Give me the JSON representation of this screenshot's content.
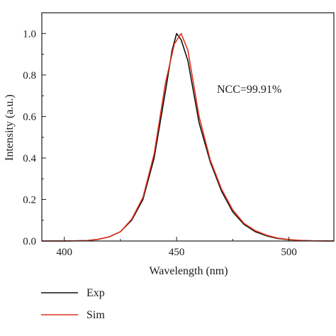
{
  "chart_data": {
    "type": "line",
    "xlabel": "Wavelength (nm)",
    "ylabel": "Intensity (a.u.)",
    "xlim": [
      390,
      520
    ],
    "ylim": [
      0,
      1.1
    ],
    "x_ticks": [
      400,
      450,
      500
    ],
    "y_ticks": [
      0.0,
      0.2,
      0.4,
      0.6,
      0.8,
      1.0
    ],
    "x_tick_labels": [
      "400",
      "450",
      "500"
    ],
    "y_tick_labels": [
      "0.0",
      "0.2",
      "0.4",
      "0.6",
      "0.8",
      "1.0"
    ],
    "annotation": "NCC=99.91%",
    "legend_position": "bottom-left",
    "series": [
      {
        "name": "Exp",
        "color": "#111111",
        "x": [
          390,
          400,
          410,
          415,
          420,
          425,
          430,
          435,
          440,
          445,
          448,
          450,
          452,
          455,
          460,
          465,
          470,
          475,
          480,
          485,
          490,
          495,
          500,
          505,
          510,
          520
        ],
        "y": [
          0.0,
          0.0,
          0.002,
          0.008,
          0.02,
          0.045,
          0.1,
          0.2,
          0.4,
          0.72,
          0.92,
          1.0,
          0.97,
          0.87,
          0.57,
          0.38,
          0.24,
          0.14,
          0.08,
          0.045,
          0.025,
          0.012,
          0.006,
          0.003,
          0.001,
          0.0
        ]
      },
      {
        "name": "Sim",
        "color": "#e0311f",
        "x": [
          390,
          400,
          410,
          415,
          420,
          425,
          430,
          435,
          440,
          445,
          449,
          452,
          455,
          460,
          465,
          470,
          475,
          480,
          485,
          490,
          495,
          500,
          505,
          510,
          520
        ],
        "y": [
          0.0,
          0.0,
          0.002,
          0.008,
          0.02,
          0.045,
          0.105,
          0.21,
          0.42,
          0.76,
          0.95,
          1.0,
          0.92,
          0.6,
          0.39,
          0.25,
          0.15,
          0.085,
          0.05,
          0.028,
          0.014,
          0.007,
          0.003,
          0.001,
          0.0
        ]
      }
    ]
  }
}
